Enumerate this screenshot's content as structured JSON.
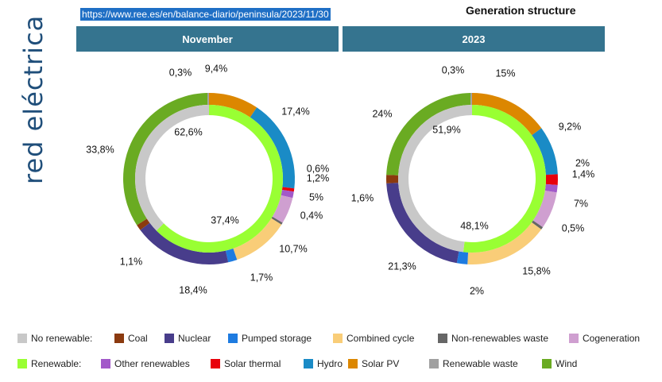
{
  "url": "https://www.ree.es/en/balance-diario/peninsula/2023/11/30",
  "page_title": "Generation structure",
  "logo_text": "red eléctrica",
  "colors": {
    "no_renewable": "#c8c8c8",
    "coal": "#8b3a0f",
    "nuclear": "#483d8b",
    "pumped_storage": "#1e7be0",
    "combined_cycle": "#f9cd78",
    "non_renewables_waste": "#666666",
    "cogeneration": "#cf9fd0",
    "renewable": "#99ff33",
    "other_renewables": "#a259c9",
    "solar_thermal": "#e8000b",
    "hydro": "#1a8bc6",
    "solar_pv": "#dc8700",
    "renewable_waste": "#a0a0a0",
    "wind": "#6aab22"
  },
  "legend": {
    "row1": [
      {
        "key": "no_renewable",
        "label": "No renewable:"
      },
      {
        "key": "coal",
        "label": "Coal"
      },
      {
        "key": "nuclear",
        "label": "Nuclear"
      },
      {
        "key": "pumped_storage",
        "label": "Pumped storage"
      },
      {
        "key": "combined_cycle",
        "label": "Combined cycle"
      },
      {
        "key": "non_renewables_waste",
        "label": "Non-renewables waste"
      },
      {
        "key": "cogeneration",
        "label": "Cogeneration"
      }
    ],
    "row2": [
      {
        "key": "renewable",
        "label": "Renewable:"
      },
      {
        "key": "other_renewables",
        "label": "Other renewables"
      },
      {
        "key": "solar_thermal",
        "label": "Solar thermal"
      },
      {
        "key": "hydro",
        "label": "Hydro"
      },
      {
        "key": "solar_pv",
        "label": "Solar PV"
      },
      {
        "key": "renewable_waste",
        "label": "Renewable waste"
      },
      {
        "key": "wind",
        "label": "Wind"
      }
    ]
  },
  "chart_data": [
    {
      "type": "pie",
      "title": "November",
      "inner": [
        {
          "key": "renewable",
          "value": 62.6,
          "label": "62,6%"
        },
        {
          "key": "no_renewable",
          "value": 37.4,
          "label": "37,4%"
        }
      ],
      "outer": [
        {
          "key": "solar_pv",
          "value": 9.4,
          "label": "9,4%"
        },
        {
          "key": "hydro",
          "value": 17.4,
          "label": "17,4%"
        },
        {
          "key": "solar_thermal",
          "value": 0.6,
          "label": "0,6%"
        },
        {
          "key": "other_renewables",
          "value": 1.2,
          "label": "1,2%"
        },
        {
          "key": "cogeneration",
          "value": 5.0,
          "label": "5%"
        },
        {
          "key": "non_renewables_waste",
          "value": 0.4,
          "label": "0,4%"
        },
        {
          "key": "combined_cycle",
          "value": 10.7,
          "label": "10,7%"
        },
        {
          "key": "pumped_storage",
          "value": 1.7,
          "label": "1,7%"
        },
        {
          "key": "nuclear",
          "value": 18.4,
          "label": "18,4%"
        },
        {
          "key": "coal",
          "value": 1.1,
          "label": "1,1%"
        },
        {
          "key": "wind",
          "value": 33.8,
          "label": "33,8%"
        },
        {
          "key": "renewable_waste",
          "value": 0.3,
          "label": "0,3%"
        }
      ]
    },
    {
      "type": "pie",
      "title": "2023",
      "inner": [
        {
          "key": "renewable",
          "value": 51.9,
          "label": "51,9%"
        },
        {
          "key": "no_renewable",
          "value": 48.1,
          "label": "48,1%"
        }
      ],
      "outer": [
        {
          "key": "solar_pv",
          "value": 15.0,
          "label": "15%"
        },
        {
          "key": "hydro",
          "value": 9.2,
          "label": "9,2%"
        },
        {
          "key": "solar_thermal",
          "value": 2.0,
          "label": "2%"
        },
        {
          "key": "other_renewables",
          "value": 1.4,
          "label": "1,4%"
        },
        {
          "key": "cogeneration",
          "value": 7.0,
          "label": "7%"
        },
        {
          "key": "non_renewables_waste",
          "value": 0.5,
          "label": "0,5%"
        },
        {
          "key": "combined_cycle",
          "value": 15.8,
          "label": "15,8%"
        },
        {
          "key": "pumped_storage",
          "value": 2.0,
          "label": "2%"
        },
        {
          "key": "nuclear",
          "value": 21.3,
          "label": "21,3%"
        },
        {
          "key": "coal",
          "value": 1.6,
          "label": "1,6%"
        },
        {
          "key": "wind",
          "value": 24.0,
          "label": "24%"
        },
        {
          "key": "renewable_waste",
          "value": 0.3,
          "label": "0,3%"
        }
      ]
    }
  ]
}
